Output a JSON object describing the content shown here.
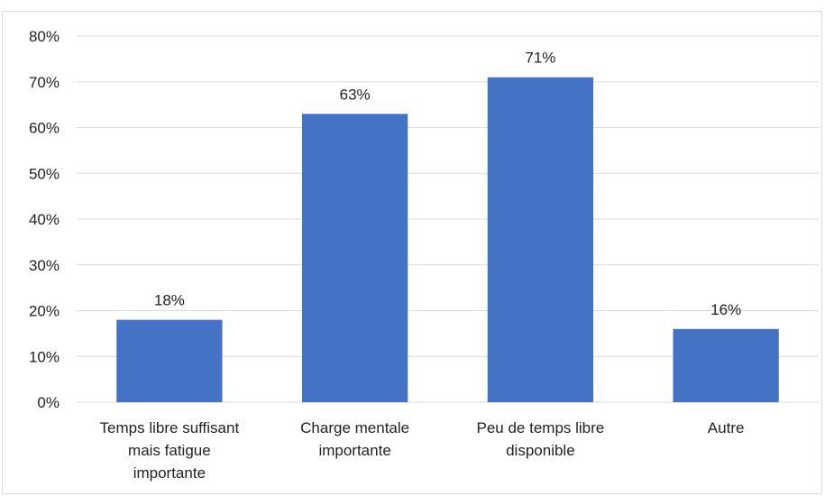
{
  "chart_data": {
    "type": "bar",
    "categories": [
      [
        "Temps libre suffisant",
        "mais fatigue",
        "importante"
      ],
      [
        "Charge mentale",
        "importante"
      ],
      [
        "Peu de temps libre",
        "disponible"
      ],
      [
        "Autre"
      ]
    ],
    "values": [
      18,
      63,
      71,
      16
    ],
    "data_labels": [
      "18%",
      "63%",
      "71%",
      "16%"
    ],
    "title": "",
    "xlabel": "",
    "ylabel": "",
    "ylim": [
      0,
      80
    ],
    "yticks": [
      0,
      10,
      20,
      30,
      40,
      50,
      60,
      70,
      80
    ],
    "ytick_labels": [
      "0%",
      "10%",
      "20%",
      "30%",
      "40%",
      "50%",
      "60%",
      "70%",
      "80%"
    ],
    "grid": true,
    "legend": "none",
    "bar_color": "#4472C4",
    "grid_color": "#d9d9d9"
  }
}
